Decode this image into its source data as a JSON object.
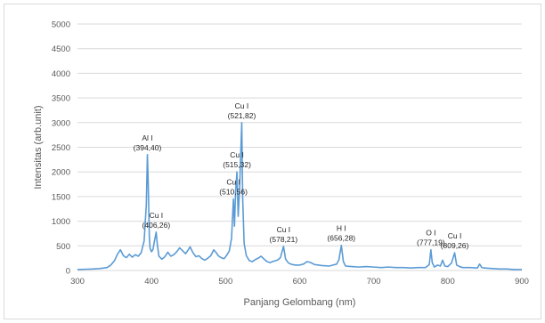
{
  "chart_data": {
    "type": "line",
    "title": "",
    "xlabel": "Panjang Gelombang (nm)",
    "ylabel": "Intensitas (arb.unit)",
    "xlim": [
      300,
      900
    ],
    "ylim": [
      0,
      5000
    ],
    "xticks": [
      300,
      400,
      500,
      600,
      700,
      800,
      900
    ],
    "yticks": [
      0,
      500,
      1000,
      1500,
      2000,
      2500,
      3000,
      3500,
      4000,
      4500,
      5000
    ],
    "grid": true,
    "legend": "none",
    "series": [
      {
        "color": "#5b9bd5",
        "x": [
          300,
          310,
          320,
          330,
          340,
          345,
          350,
          354,
          358,
          362,
          366,
          370,
          374,
          378,
          382,
          386,
          390,
          393,
          394.4,
          395.5,
          397,
          398,
          400,
          402,
          404,
          406.26,
          408,
          410,
          414,
          418,
          422,
          426,
          430,
          434,
          438,
          442,
          446,
          450,
          452,
          456,
          460,
          464,
          468,
          472,
          476,
          480,
          484,
          488,
          490,
          494,
          498,
          502,
          505,
          508,
          510.56,
          512,
          513.5,
          515.32,
          517,
          519,
          521.82,
          523,
          525,
          528,
          532,
          536,
          540,
          544,
          548,
          552,
          556,
          560,
          565,
          570,
          574,
          578.21,
          581,
          585,
          590,
          595,
          600,
          605,
          610,
          615,
          620,
          630,
          640,
          645,
          650,
          653,
          656.28,
          659,
          662,
          670,
          680,
          690,
          700,
          710,
          720,
          730,
          740,
          750,
          760,
          770,
          775,
          777.19,
          779,
          782,
          786,
          790,
          793,
          796,
          800,
          805,
          809.26,
          812,
          816,
          820,
          830,
          840,
          843,
          846,
          850,
          860,
          870,
          880,
          890,
          900
        ],
        "y": [
          20,
          25,
          30,
          40,
          60,
          110,
          200,
          330,
          420,
          300,
          260,
          330,
          270,
          320,
          290,
          360,
          600,
          1350,
          2350,
          1800,
          700,
          450,
          380,
          430,
          600,
          780,
          500,
          290,
          230,
          280,
          370,
          290,
          320,
          380,
          460,
          400,
          340,
          430,
          480,
          360,
          280,
          300,
          240,
          210,
          250,
          300,
          420,
          350,
          300,
          260,
          240,
          320,
          400,
          650,
          1450,
          900,
          1600,
          2000,
          1100,
          1700,
          3000,
          1500,
          550,
          300,
          200,
          180,
          220,
          250,
          290,
          230,
          180,
          160,
          190,
          210,
          260,
          490,
          230,
          150,
          120,
          110,
          110,
          130,
          180,
          160,
          120,
          100,
          90,
          110,
          130,
          220,
          510,
          180,
          90,
          80,
          70,
          80,
          70,
          60,
          70,
          60,
          60,
          50,
          60,
          60,
          120,
          420,
          160,
          70,
          110,
          90,
          210,
          90,
          80,
          150,
          360,
          110,
          80,
          60,
          60,
          50,
          130,
          60,
          50,
          40,
          30,
          30,
          20,
          20
        ]
      }
    ],
    "annotations": [
      {
        "line1": "Al I",
        "line2": "(394,40)",
        "x": 394.4,
        "y": 2350
      },
      {
        "line1": "Cu I",
        "line2": "(406,26)",
        "x": 406.26,
        "y": 780
      },
      {
        "line1": "Cu I",
        "line2": "(510,56)",
        "x": 510.56,
        "y": 1450
      },
      {
        "line1": "Cu I",
        "line2": "(515,32)",
        "x": 515.32,
        "y": 2000
      },
      {
        "line1": "Cu I",
        "line2": "(521,82)",
        "x": 521.82,
        "y": 3000
      },
      {
        "line1": "Cu I",
        "line2": "(578,21)",
        "x": 578.21,
        "y": 490
      },
      {
        "line1": "H I",
        "line2": "(656,28)",
        "x": 656.28,
        "y": 510
      },
      {
        "line1": "O I",
        "line2": "(777,19)",
        "x": 777.19,
        "y": 420
      },
      {
        "line1": "Cu I",
        "line2": "(809,26)",
        "x": 809.26,
        "y": 360
      }
    ]
  }
}
